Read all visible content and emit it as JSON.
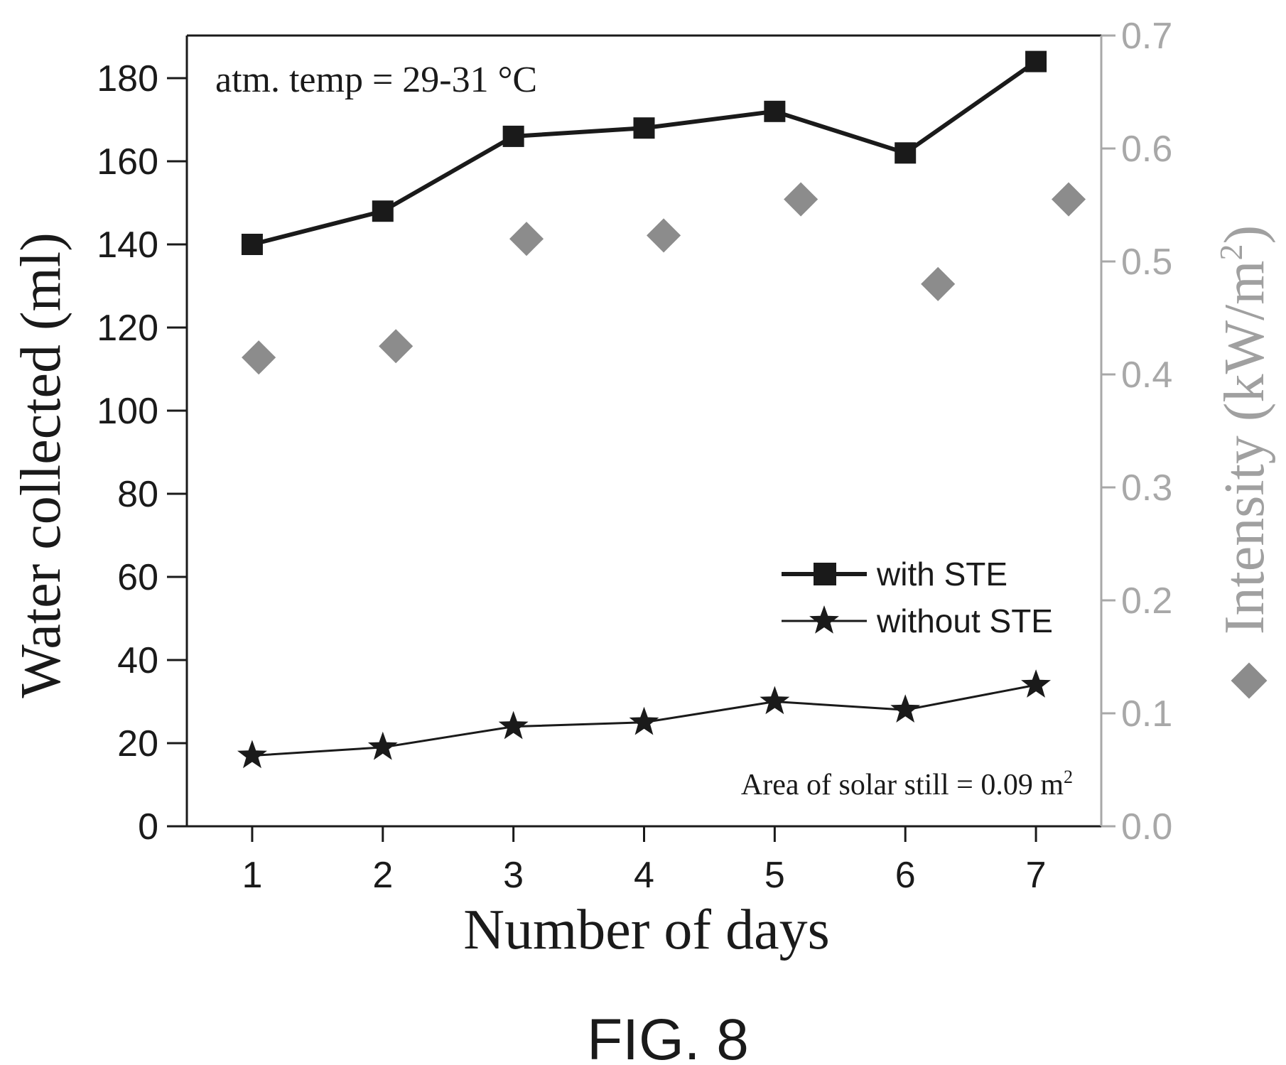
{
  "figure_label": "FIG. 8",
  "chart_data": {
    "type": "line",
    "xlabel": "Number of days",
    "ylabel": "Water collected (ml)",
    "y2label_prefix": "Intensity (kW/m",
    "y2label_sup": "2",
    "y2label_suffix": ")",
    "x": [
      1,
      2,
      3,
      4,
      5,
      6,
      7
    ],
    "xlim": [
      0.5,
      7.5
    ],
    "ylim": [
      0,
      180
    ],
    "y2lim": [
      0.0,
      0.7
    ],
    "xticks": [
      "1",
      "2",
      "3",
      "4",
      "5",
      "6",
      "7"
    ],
    "yticks": [
      "0",
      "20",
      "40",
      "60",
      "80",
      "100",
      "120",
      "140",
      "160",
      "180"
    ],
    "y2ticks": [
      "0.0",
      "0.1",
      "0.2",
      "0.3",
      "0.4",
      "0.5",
      "0.6",
      "0.7"
    ],
    "series": [
      {
        "name": "with STE",
        "axis": "left",
        "marker": "square",
        "values": [
          140,
          148,
          166,
          168,
          172,
          162,
          184
        ]
      },
      {
        "name": "without STE",
        "axis": "left",
        "marker": "star",
        "values": [
          17,
          19,
          24,
          25,
          30,
          28,
          34
        ]
      },
      {
        "name": "",
        "axis": "right",
        "marker": "diamond",
        "x": [
          1.05,
          2.1,
          3.1,
          4.15,
          5.2,
          6.25,
          7.25
        ],
        "values": [
          0.415,
          0.425,
          0.52,
          0.523,
          0.555,
          0.48,
          0.555
        ]
      }
    ],
    "annotations": {
      "temp_text": "atm. temp = 29-31 °C",
      "area_text": "Area of solar still = 0.09 m",
      "area_sup": "2"
    },
    "legend_position": "lower-right",
    "grid": false,
    "colors": {
      "main": "#1a1a1a",
      "intensity": "#8c8c8c",
      "intensity_axis": "#a8a8a8"
    }
  }
}
